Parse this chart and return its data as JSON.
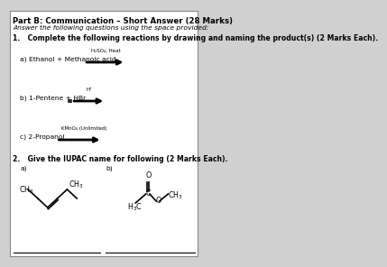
{
  "title": "Part B: Communication – Short Answer (28 Marks)",
  "subtitle": "Answer the following questions using the space provided:",
  "q1_text": "1.   Complete the following reactions by drawing and naming the product(s) (2 Marks Each).",
  "q2_text": "2.   Give the IUPAC name for following (2 Marks Each).",
  "a_label_q1": "a) Ethanol + Methanoic acid",
  "a_condition_q1": "H₂SO₄, Heat",
  "b_label_q1": "b) 1-Pentene + HBr",
  "b_condition_q1": "H⁺",
  "c_label_q1": "c) 2-Propanol",
  "c_condition_q1": "KMnO₄ (Unlimited)",
  "q2a_label": "a)",
  "q2b_label": "b)",
  "bg_color": "#d0d0d0",
  "text_color": "#000000",
  "box_color": "#ffffff"
}
